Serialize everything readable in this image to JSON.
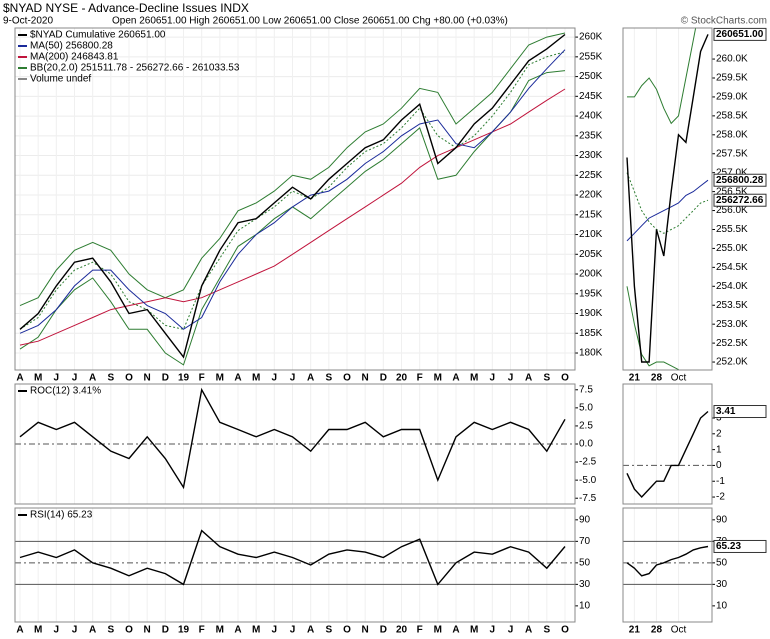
{
  "chart_data": [
    {
      "type": "line",
      "title": "$NYAD NYSE - Advance-Decline Issues INDX",
      "date": "9-Oct-2020",
      "quote": "Open 260651.00 High 260651.00 Low 260651.00 Close 260651.00 Chg +80.00 (+0.03%)",
      "credit": "© StockCharts.com",
      "volume_label": "Volume undef",
      "categories": [
        "A",
        "M",
        "J",
        "J",
        "A",
        "S",
        "O",
        "N",
        "D",
        "19",
        "F",
        "M",
        "A",
        "M",
        "J",
        "J",
        "A",
        "S",
        "O",
        "N",
        "D",
        "20",
        "F",
        "M",
        "A",
        "M",
        "J",
        "J",
        "A",
        "S",
        "O"
      ],
      "ylim": [
        175700,
        262300
      ],
      "yticks": [
        {
          "value": 180000,
          "label": "180K"
        },
        {
          "value": 185000,
          "label": "185K"
        },
        {
          "value": 190000,
          "label": "190K"
        },
        {
          "value": 195000,
          "label": "195K"
        },
        {
          "value": 200000,
          "label": "200K"
        },
        {
          "value": 205000,
          "label": "205K"
        },
        {
          "value": 210000,
          "label": "210K"
        },
        {
          "value": 215000,
          "label": "215K"
        },
        {
          "value": 220000,
          "label": "220K"
        },
        {
          "value": 225000,
          "label": "225K"
        },
        {
          "value": 230000,
          "label": "230K"
        },
        {
          "value": 235000,
          "label": "235K"
        },
        {
          "value": 240000,
          "label": "240K"
        },
        {
          "value": 245000,
          "label": "245K"
        },
        {
          "value": 250000,
          "label": "250K"
        },
        {
          "value": 255000,
          "label": "255K"
        },
        {
          "value": 260000,
          "label": "260K"
        }
      ],
      "grid": true,
      "bands": {
        "name": "BB(20,2.0) 251511.78 - 256272.66 - 261033.53",
        "color": "#2e7d32",
        "upper": [
          192000,
          194000,
          201000,
          206000,
          208000,
          206000,
          200000,
          196000,
          194000,
          196000,
          204000,
          209000,
          216000,
          218000,
          221000,
          225000,
          224000,
          227000,
          232000,
          236000,
          238000,
          242000,
          247000,
          246000,
          238000,
          242000,
          246000,
          252000,
          258000,
          260000,
          261033.53
        ],
        "middle": [
          186000,
          189000,
          196000,
          201000,
          203000,
          200000,
          193000,
          191000,
          187000,
          186000,
          197000,
          204000,
          211000,
          214000,
          217000,
          221000,
          219000,
          222000,
          227000,
          231000,
          233000,
          237000,
          242000,
          235000,
          232000,
          235000,
          240000,
          246000,
          253000,
          255000,
          256272.66
        ],
        "lower": [
          181000,
          184000,
          191000,
          196000,
          199000,
          193000,
          186000,
          186000,
          180000,
          177000,
          191000,
          199000,
          207000,
          210000,
          214000,
          217000,
          214000,
          218000,
          222000,
          226000,
          229000,
          233000,
          237000,
          224000,
          225000,
          231000,
          236000,
          241000,
          249000,
          251000,
          251511.78
        ]
      },
      "series": [
        {
          "name": "$NYAD Cumulative 260651.00",
          "color": "#000000",
          "values": [
            186000,
            190000,
            197000,
            203000,
            204000,
            198000,
            190000,
            191000,
            185000,
            179000,
            197000,
            206000,
            213000,
            214000,
            218000,
            222000,
            219000,
            224000,
            228000,
            232000,
            234000,
            239000,
            243000,
            228000,
            232000,
            238000,
            242000,
            248000,
            254000,
            257000,
            260651
          ]
        },
        {
          "name": "MA(50) 256800.28",
          "color": "#1a2a9a",
          "values": [
            185000,
            187000,
            191000,
            197000,
            201000,
            201000,
            196000,
            192000,
            190000,
            186000,
            189000,
            198000,
            205000,
            210000,
            213000,
            217000,
            220000,
            221000,
            224000,
            228000,
            231000,
            235000,
            238000,
            239000,
            233000,
            232000,
            236000,
            241000,
            247000,
            252000,
            256800.28
          ]
        },
        {
          "name": "MA(200) 246843.81",
          "color": "#c0143c",
          "values": [
            182000,
            183000,
            185000,
            187000,
            189000,
            191000,
            192000,
            193000,
            194000,
            193000,
            194000,
            196000,
            198000,
            200000,
            202000,
            205000,
            208000,
            211000,
            214000,
            217000,
            220000,
            223000,
            227000,
            230000,
            232000,
            234000,
            236000,
            238000,
            241000,
            244000,
            246843.81
          ]
        }
      ]
    },
    {
      "type": "line",
      "categories": [
        "A",
        "M",
        "J",
        "J",
        "A",
        "S",
        "O",
        "N",
        "D",
        "19",
        "F",
        "M",
        "A",
        "M",
        "J",
        "J",
        "A",
        "S",
        "O",
        "N",
        "D",
        "20",
        "F",
        "M",
        "A",
        "M",
        "J",
        "J",
        "A",
        "S",
        "O"
      ],
      "ylim": [
        -8.3,
        8.3
      ],
      "yticks": [
        7.5,
        {
          "value": 5,
          "label": "5.0"
        },
        2.5,
        {
          "value": 0,
          "label": "0.0"
        },
        -2.5,
        {
          "value": -5,
          "label": "-5.0"
        },
        -7.5
      ],
      "ref_lines": [
        0
      ],
      "series": [
        {
          "name": "ROC(12) 3.41%",
          "color": "#000000",
          "values": [
            1,
            3,
            2,
            3,
            1,
            -1,
            -2,
            1,
            -2,
            -6,
            7.5,
            3,
            2,
            1,
            2,
            1,
            -1,
            2,
            2,
            3,
            1,
            2,
            2,
            -5,
            1,
            3,
            2,
            3,
            2,
            -1,
            3.41
          ]
        }
      ]
    },
    {
      "type": "line",
      "categories": [
        "A",
        "M",
        "J",
        "J",
        "A",
        "S",
        "O",
        "N",
        "D",
        "19",
        "F",
        "M",
        "A",
        "M",
        "J",
        "J",
        "A",
        "S",
        "O",
        "N",
        "D",
        "20",
        "F",
        "M",
        "A",
        "M",
        "J",
        "J",
        "A",
        "S",
        "O"
      ],
      "ylim": [
        -5,
        101
      ],
      "yticks": [
        90,
        70,
        50,
        30,
        10
      ],
      "ref_lines": [
        70,
        50,
        30
      ],
      "series": [
        {
          "name": "RSI(14) 65.23",
          "color": "#000000",
          "values": [
            55,
            60,
            55,
            62,
            50,
            45,
            38,
            45,
            40,
            30,
            80,
            65,
            58,
            55,
            60,
            55,
            48,
            58,
            62,
            60,
            55,
            65,
            72,
            30,
            50,
            60,
            58,
            65,
            60,
            45,
            65.23
          ]
        }
      ]
    },
    {
      "type": "line",
      "categories": [
        null,
        "21",
        null,
        null,
        "28",
        null,
        null,
        "Oct",
        null,
        null,
        null,
        null
      ],
      "ylim": [
        251790,
        260820
      ],
      "yticks": [
        {
          "value": 252000,
          "label": "252.0K"
        },
        {
          "value": 252500,
          "label": "252.5K"
        },
        {
          "value": 253000,
          "label": "253.0K"
        },
        {
          "value": 253500,
          "label": "253.5K"
        },
        {
          "value": 254000,
          "label": "254.0K"
        },
        {
          "value": 254500,
          "label": "254.5K"
        },
        {
          "value": 255000,
          "label": "255.0K"
        },
        {
          "value": 255500,
          "label": "255.5K"
        },
        {
          "value": 256000,
          "label": "256.0K"
        },
        {
          "value": 256500,
          "label": "256.5K"
        },
        {
          "value": 257000,
          "label": "257.0K"
        },
        {
          "value": 257500,
          "label": "257.5K"
        },
        {
          "value": 258000,
          "label": "258.0K"
        },
        {
          "value": 258500,
          "label": "258.5K"
        },
        {
          "value": 259000,
          "label": "259.0K"
        },
        {
          "value": 259500,
          "label": "259.5K"
        },
        {
          "value": 260000,
          "label": "260.0K"
        }
      ],
      "bands": {
        "color": "#2e7d32",
        "upper": [
          259000,
          259000,
          259300,
          259500,
          259200,
          258700,
          258300,
          258500,
          259500,
          260500,
          261500,
          262000
        ],
        "middle": [
          257000,
          256500,
          256000,
          255700,
          255500,
          255400,
          255500,
          255600,
          255800,
          256000,
          256200,
          256272.66
        ],
        "lower": [
          254000,
          253000,
          252200,
          251900,
          252000,
          252000,
          251900,
          251800,
          251500,
          251000,
          250500,
          250000
        ]
      },
      "series": [
        {
          "color": "#000000",
          "values": [
            257400,
            254000,
            252000,
            252000,
            255500,
            254800,
            256500,
            258000,
            257800,
            259000,
            260200,
            260651
          ]
        },
        {
          "color": "#1a2a9a",
          "values": [
            255200,
            255400,
            255600,
            255800,
            255900,
            256000,
            256100,
            256200,
            256400,
            256500,
            256650,
            256800.28
          ]
        }
      ],
      "markers": [
        {
          "value": 260651,
          "label": "260651.00"
        },
        {
          "value": 256800.28,
          "label": "256800.28"
        },
        {
          "value": 256272.66,
          "label": "256272.66"
        }
      ]
    },
    {
      "type": "line",
      "categories": [
        null,
        "21",
        null,
        null,
        "28",
        null,
        null,
        "Oct",
        null,
        null,
        null,
        null
      ],
      "ylim": [
        -2.44,
        5.15
      ],
      "yticks": [
        3,
        2,
        1,
        0,
        -1,
        -2
      ],
      "ref_lines": [
        0
      ],
      "series": [
        {
          "color": "#000000",
          "values": [
            -0.5,
            -1.5,
            -2,
            -1.5,
            -1,
            -1,
            0,
            0,
            1,
            2,
            3,
            3.41
          ]
        }
      ],
      "markers": [
        {
          "value": 3.41,
          "label": "3.41"
        }
      ]
    },
    {
      "type": "line",
      "categories": [
        null,
        "21",
        null,
        null,
        "28",
        null,
        null,
        "Oct",
        null,
        null,
        null,
        null
      ],
      "ylim": [
        -5,
        101
      ],
      "yticks": [
        90,
        70,
        50,
        30,
        10
      ],
      "ref_lines": [
        70,
        50,
        30
      ],
      "series": [
        {
          "color": "#000000",
          "values": [
            50,
            45,
            38,
            40,
            48,
            50,
            53,
            55,
            58,
            62,
            64,
            65.23
          ]
        }
      ],
      "markers": [
        {
          "value": 65.23,
          "label": "65.23"
        }
      ]
    }
  ]
}
